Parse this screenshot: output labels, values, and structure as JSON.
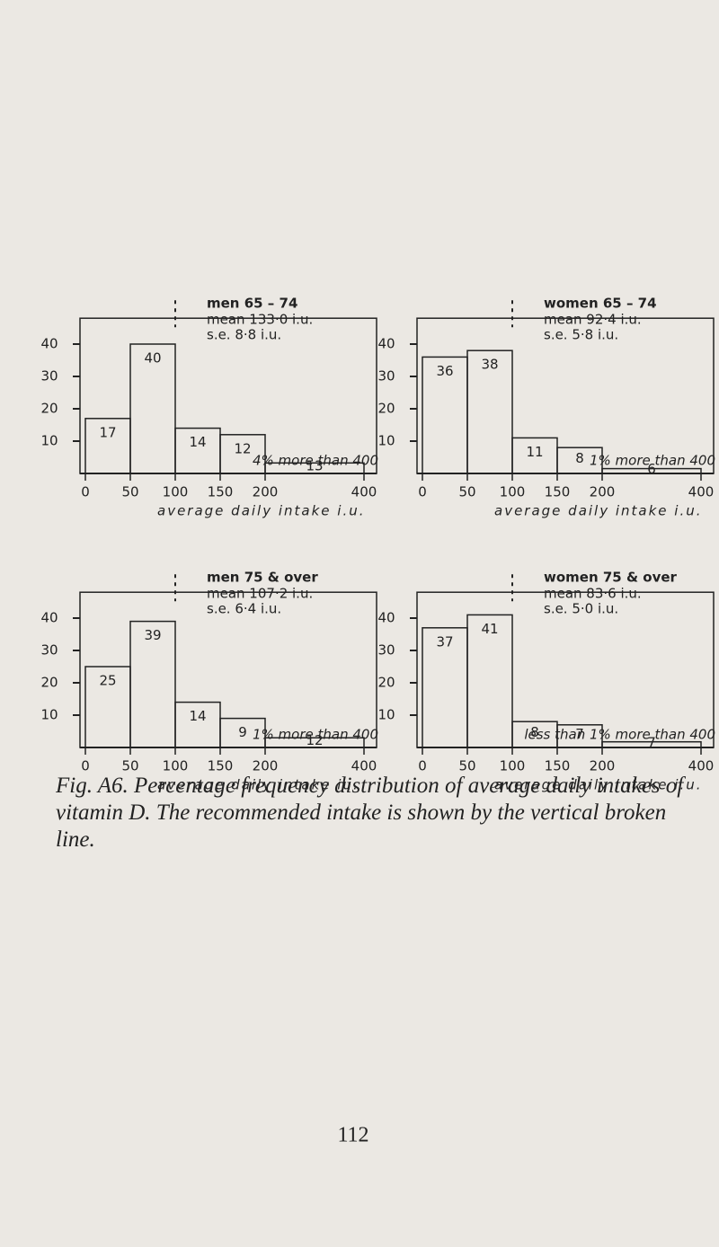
{
  "chart_data": [
    {
      "type": "histogram",
      "title": "men  65 – 74",
      "mean": "mean  133·0 i.u.",
      "se": "s.e.  8·8 i.u.",
      "annotation": "4% more than 400",
      "x_label": "average daily intake i.u.",
      "bins": [
        0,
        50,
        100,
        150,
        200,
        400
      ],
      "values": [
        17,
        40,
        14,
        12,
        13
      ],
      "xlim": [
        0,
        400
      ],
      "xticks": [
        0,
        50,
        100,
        150,
        200,
        400
      ],
      "ylim": [
        0,
        48
      ],
      "yticks": [
        10,
        20,
        30,
        40
      ],
      "recommended_intake": 100
    },
    {
      "type": "histogram",
      "title": "women  65 – 74",
      "mean": "mean  92·4  i.u.",
      "se": "s.e.  5·8  i.u.",
      "annotation": "1% more than 400",
      "x_label": "average daily intake i.u.",
      "bins": [
        0,
        50,
        100,
        150,
        200,
        400
      ],
      "values": [
        36,
        38,
        11,
        8,
        6
      ],
      "xlim": [
        0,
        400
      ],
      "xticks": [
        0,
        50,
        100,
        150,
        200,
        400
      ],
      "ylim": [
        0,
        48
      ],
      "yticks": [
        10,
        20,
        30,
        40
      ],
      "recommended_intake": 100
    },
    {
      "type": "histogram",
      "title": "men  75 & over",
      "mean": "mean  107·2  i.u.",
      "se": "s.e.  6·4  i.u.",
      "annotation": "1% more than 400",
      "x_label": "average daily intake iu.",
      "bins": [
        0,
        50,
        100,
        150,
        200,
        400
      ],
      "values": [
        25,
        39,
        14,
        9,
        12
      ],
      "xlim": [
        0,
        400
      ],
      "xticks": [
        0,
        50,
        100,
        150,
        200,
        400
      ],
      "ylim": [
        0,
        48
      ],
      "yticks": [
        10,
        20,
        30,
        40
      ],
      "recommended_intake": 100
    },
    {
      "type": "histogram",
      "title": "women  75 & over",
      "mean": "mean  83·6  i.u.",
      "se": "s.e.  5·0  i.u.",
      "annotation": "less than 1% more than 400",
      "x_label": "average daily intake i.u.",
      "bins": [
        0,
        50,
        100,
        150,
        200,
        400
      ],
      "values": [
        37,
        41,
        8,
        7,
        7
      ],
      "xlim": [
        0,
        400
      ],
      "xticks": [
        0,
        50,
        100,
        150,
        200,
        400
      ],
      "ylim": [
        0,
        48
      ],
      "yticks": [
        10,
        20,
        30,
        40
      ],
      "recommended_intake": 100
    }
  ],
  "caption": "Fig. A6. Percentage frequency distribution of average daily intakes of vitamin D. The recommended intake is shown by the vertical broken line.",
  "page_number": "112"
}
